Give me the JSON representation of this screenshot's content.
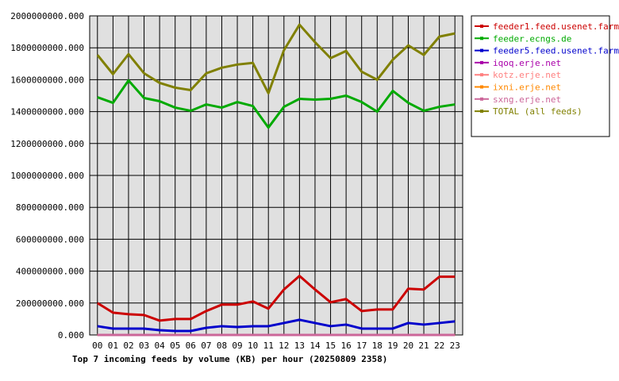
{
  "chart_data": {
    "type": "line",
    "title": "Top 7 incoming feeds by volume (KB) per hour (20250809 2358)",
    "xlabel": "",
    "ylabel": "",
    "x": [
      "00",
      "01",
      "02",
      "03",
      "04",
      "05",
      "06",
      "07",
      "08",
      "09",
      "10",
      "11",
      "12",
      "13",
      "14",
      "15",
      "16",
      "17",
      "18",
      "19",
      "20",
      "21",
      "22",
      "23"
    ],
    "ylim": [
      0,
      2000000000
    ],
    "yticks": [
      "0.000",
      "200000000.000",
      "400000000.000",
      "600000000.000",
      "800000000.000",
      "1000000000.000",
      "1200000000.000",
      "1400000000.000",
      "1600000000.000",
      "1800000000.000",
      "2000000000.000"
    ],
    "grid": true,
    "legend_position": "right",
    "series": [
      {
        "name": "feeder1.feed.usenet.farm",
        "color": "#cc0000",
        "values": [
          200000000,
          140000000,
          130000000,
          125000000,
          90000000,
          100000000,
          100000000,
          150000000,
          190000000,
          190000000,
          210000000,
          165000000,
          285000000,
          370000000,
          285000000,
          205000000,
          225000000,
          150000000,
          160000000,
          160000000,
          290000000,
          285000000,
          365000000,
          365000000
        ]
      },
      {
        "name": "feeder.ecngs.de",
        "color": "#00aa00",
        "values": [
          1490000000,
          1455000000,
          1595000000,
          1485000000,
          1465000000,
          1425000000,
          1405000000,
          1445000000,
          1425000000,
          1460000000,
          1435000000,
          1300000000,
          1430000000,
          1480000000,
          1475000000,
          1480000000,
          1500000000,
          1460000000,
          1400000000,
          1530000000,
          1455000000,
          1405000000,
          1430000000,
          1445000000
        ]
      },
      {
        "name": "feeder5.feed.usenet.farm",
        "color": "#0000cc",
        "values": [
          55000000,
          40000000,
          40000000,
          40000000,
          30000000,
          25000000,
          25000000,
          45000000,
          55000000,
          50000000,
          55000000,
          55000000,
          75000000,
          95000000,
          75000000,
          55000000,
          65000000,
          40000000,
          40000000,
          40000000,
          75000000,
          65000000,
          75000000,
          85000000
        ]
      },
      {
        "name": "iqoq.erje.net",
        "color": "#aa00aa",
        "values": [
          200000,
          200000,
          200000,
          200000,
          200000,
          200000,
          200000,
          200000,
          200000,
          200000,
          200000,
          200000,
          200000,
          200000,
          200000,
          200000,
          200000,
          200000,
          200000,
          200000,
          200000,
          200000,
          200000,
          200000
        ]
      },
      {
        "name": "kotz.erje.net",
        "color": "#ff8080",
        "values": [
          100000,
          100000,
          100000,
          100000,
          100000,
          100000,
          100000,
          100000,
          100000,
          100000,
          100000,
          100000,
          100000,
          100000,
          100000,
          100000,
          100000,
          100000,
          100000,
          100000,
          100000,
          100000,
          100000,
          100000
        ]
      },
      {
        "name": "ixni.erje.net",
        "color": "#ff8800",
        "values": [
          100000,
          100000,
          100000,
          100000,
          100000,
          100000,
          100000,
          100000,
          100000,
          100000,
          100000,
          100000,
          100000,
          100000,
          100000,
          100000,
          100000,
          100000,
          100000,
          100000,
          100000,
          100000,
          100000,
          100000
        ]
      },
      {
        "name": "sxng.erje.net",
        "color": "#cc6699",
        "values": [
          100000,
          100000,
          100000,
          100000,
          100000,
          100000,
          100000,
          100000,
          100000,
          100000,
          100000,
          100000,
          100000,
          100000,
          100000,
          100000,
          100000,
          100000,
          100000,
          100000,
          100000,
          100000,
          100000,
          100000
        ]
      },
      {
        "name": "TOTAL (all feeds)",
        "color": "#808000",
        "values": [
          1755000000,
          1635000000,
          1760000000,
          1640000000,
          1580000000,
          1550000000,
          1535000000,
          1640000000,
          1675000000,
          1695000000,
          1705000000,
          1515000000,
          1785000000,
          1945000000,
          1835000000,
          1735000000,
          1780000000,
          1650000000,
          1600000000,
          1725000000,
          1815000000,
          1755000000,
          1870000000,
          1890000000
        ]
      }
    ]
  }
}
